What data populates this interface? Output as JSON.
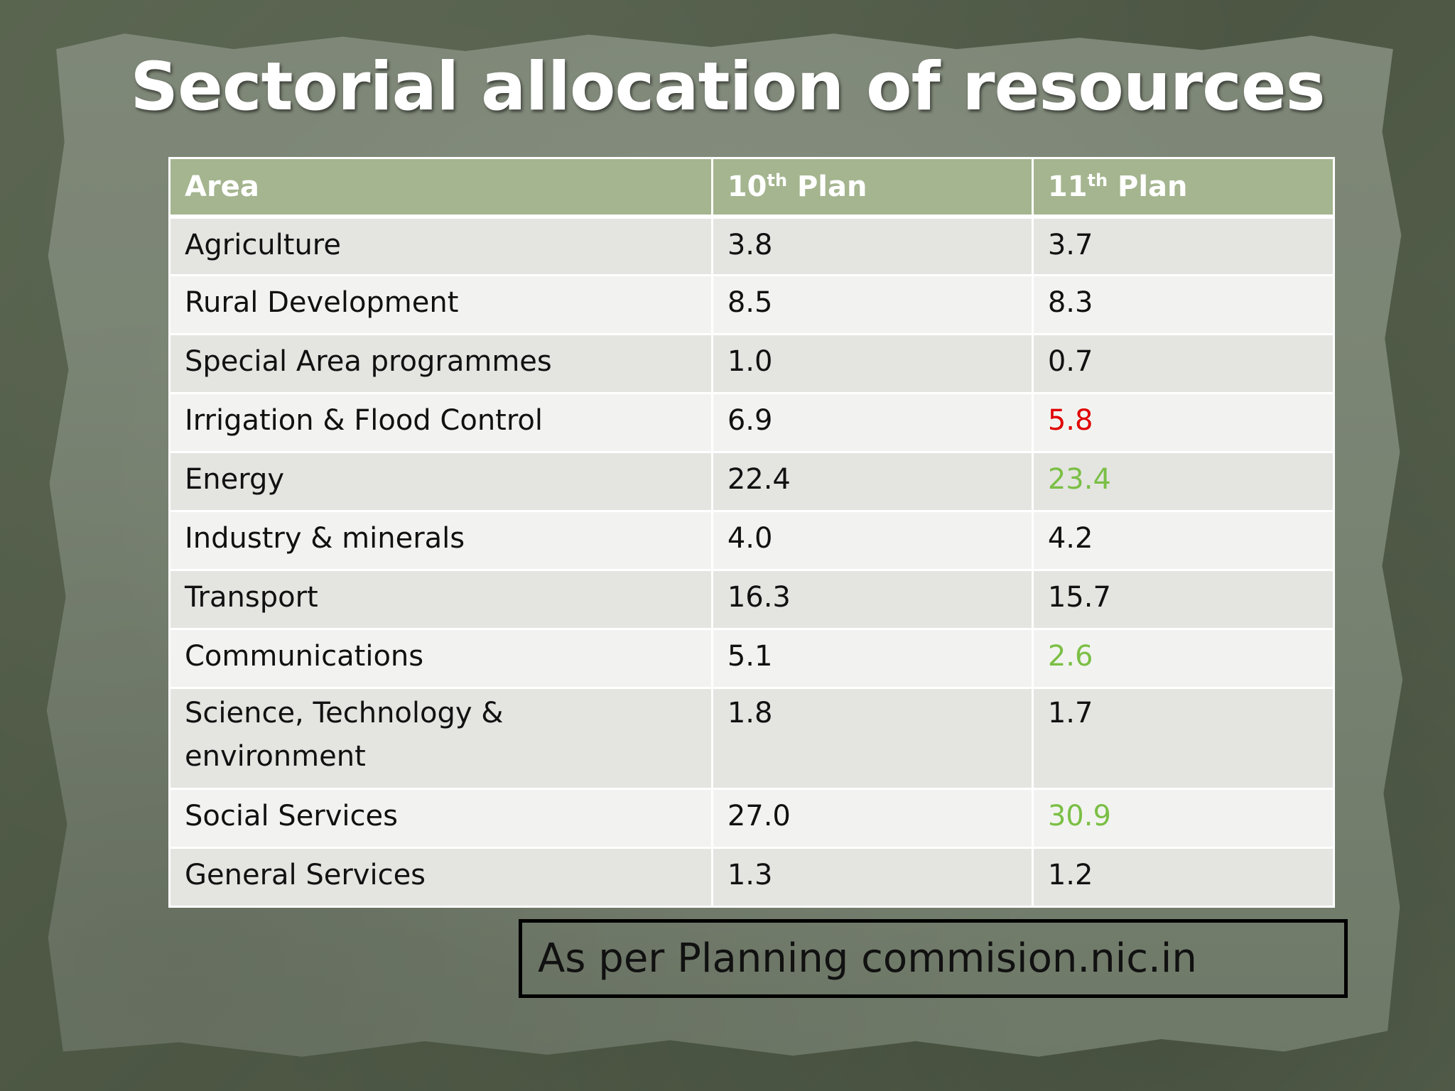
{
  "slide": {
    "title": "Sectorial allocation of resources",
    "source_note": "As per Planning commision.nic.in"
  },
  "table": {
    "headers": {
      "area": "Area",
      "plan10_num": "10",
      "plan10_sup": "th",
      "plan10_word": " Plan",
      "plan11_num": "11",
      "plan11_sup": "th",
      "plan11_word": " Plan"
    },
    "rows": [
      {
        "area": "Agriculture",
        "plan10": "3.8",
        "plan11": "3.7"
      },
      {
        "area": "Rural Development",
        "plan10": "8.5",
        "plan11": "8.3"
      },
      {
        "area": "Special Area programmes",
        "plan10": "1.0",
        "plan11": "0.7"
      },
      {
        "area": "Irrigation & Flood Control",
        "plan10": "6.9",
        "plan11": "5.8"
      },
      {
        "area": "Energy",
        "plan10": "22.4",
        "plan11": "23.4"
      },
      {
        "area": "Industry & minerals",
        "plan10": "4.0",
        "plan11": "4.2"
      },
      {
        "area": "Transport",
        "plan10": "16.3",
        "plan11": "15.7"
      },
      {
        "area": "Communications",
        "plan10": "5.1",
        "plan11": "2.6"
      },
      {
        "area_line1": "Science, Technology &",
        "area_line2": "environment",
        "plan10": "1.8",
        "plan11": "1.7"
      },
      {
        "area": "Social Services",
        "plan10": "27.0",
        "plan11": "30.9"
      },
      {
        "area": "General Services",
        "plan10": "1.3",
        "plan11": "1.2"
      }
    ]
  },
  "colors": {
    "header_bg": "#a4b58f",
    "highlight_red": "#e00000",
    "highlight_green": "#7bbf45",
    "row_odd": "#e4e5e1",
    "row_even": "#f2f3f0"
  }
}
